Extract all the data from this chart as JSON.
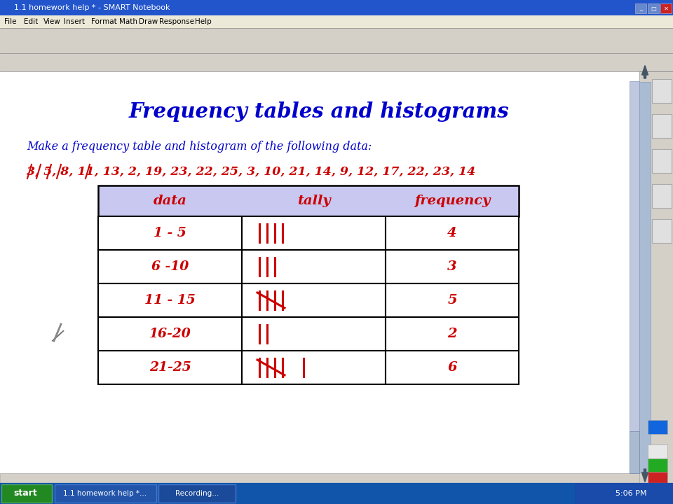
{
  "title_bar_text": "1.1 homework help * - SMART Notebook",
  "bg_color": "#d4d0c8",
  "content_bg": "#ffffff",
  "main_title": "Frequency tables and histograms",
  "main_title_color": "#0000cc",
  "subtitle": "Make a frequency table and histogram of the following data:",
  "subtitle_color": "#0000cc",
  "data_line": "3, 5, 8, 11, 13, 2, 19, 23, 22, 25, 3, 10, 21, 14, 9, 12, 17, 22, 23, 14",
  "data_line_color": "#cc0000",
  "table_header_bg": "#c8c8f0",
  "table_col_headers": [
    "data",
    "tally",
    "frequency"
  ],
  "row_labels": [
    "1 - 5",
    "6 -10",
    "11 - 15",
    "16-20",
    "21-25"
  ],
  "row_freqs": [
    "4",
    "3",
    "5",
    "2",
    "6"
  ],
  "title_bar_color": "#2255cc",
  "menu_bar_color": "#d4d0c8",
  "toolbar_color": "#d4d0c8",
  "taskbar_color": "#1155aa",
  "start_btn_color": "#228822",
  "right_panel_color": "#d4d0c8",
  "scrollbar_color": "#aabbd4"
}
